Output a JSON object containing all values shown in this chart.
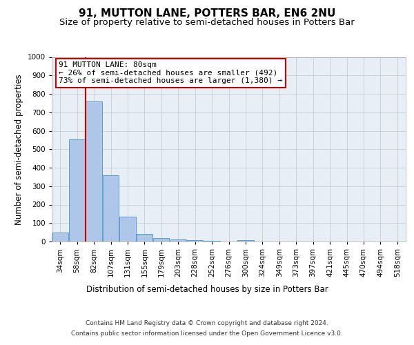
{
  "title": "91, MUTTON LANE, POTTERS BAR, EN6 2NU",
  "subtitle": "Size of property relative to semi-detached houses in Potters Bar",
  "xlabel": "Distribution of semi-detached houses by size in Potters Bar",
  "ylabel": "Number of semi-detached properties",
  "categories": [
    "34sqm",
    "58sqm",
    "82sqm",
    "107sqm",
    "131sqm",
    "155sqm",
    "179sqm",
    "203sqm",
    "228sqm",
    "252sqm",
    "276sqm",
    "300sqm",
    "324sqm",
    "349sqm",
    "373sqm",
    "397sqm",
    "421sqm",
    "445sqm",
    "470sqm",
    "494sqm",
    "518sqm"
  ],
  "values": [
    50,
    555,
    760,
    360,
    135,
    40,
    18,
    13,
    8,
    5,
    0,
    8,
    0,
    0,
    0,
    0,
    0,
    0,
    0,
    0,
    0
  ],
  "bar_color": "#aec6e8",
  "bar_edge_color": "#5a9fd4",
  "grid_color": "#cccccc",
  "background_color": "#e8eef5",
  "annotation_box_color": "#ffffff",
  "annotation_border_color": "#cc0000",
  "property_line_color": "#cc0000",
  "property_bin_index": 2,
  "annotation_text_line1": "91 MUTTON LANE: 80sqm",
  "annotation_text_line2": "← 26% of semi-detached houses are smaller (492)",
  "annotation_text_line3": "73% of semi-detached houses are larger (1,380) →",
  "ylim": [
    0,
    1000
  ],
  "yticks": [
    0,
    100,
    200,
    300,
    400,
    500,
    600,
    700,
    800,
    900,
    1000
  ],
  "footer_line1": "Contains HM Land Registry data © Crown copyright and database right 2024.",
  "footer_line2": "Contains public sector information licensed under the Open Government Licence v3.0.",
  "title_fontsize": 11,
  "subtitle_fontsize": 9.5,
  "axis_label_fontsize": 8.5,
  "tick_fontsize": 7.5,
  "annotation_fontsize": 8,
  "footer_fontsize": 6.5
}
